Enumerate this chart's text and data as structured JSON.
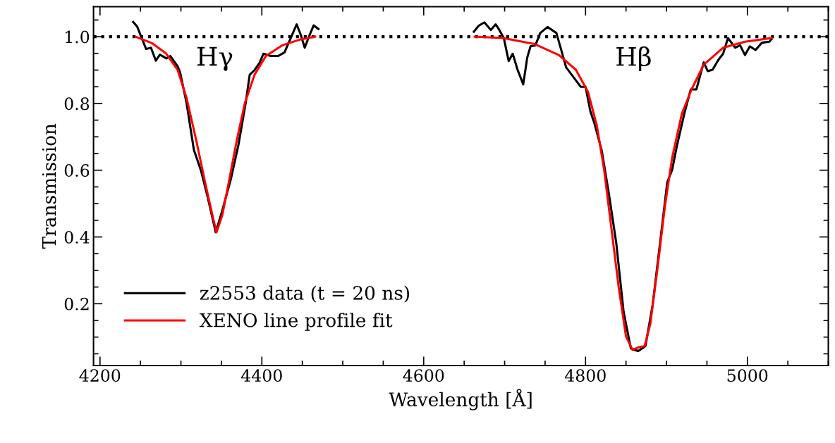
{
  "chart_data": {
    "type": "line",
    "xlabel": "Wavelength [Å]",
    "ylabel": "Transmission",
    "series": [
      {
        "name": "z2553 data (t = 20 ns)",
        "color": "#000000",
        "x": [
          4241,
          4246,
          4251,
          4257,
          4263,
          4269,
          4274,
          4282,
          4287,
          4296,
          4299,
          4307,
          4316,
          4325,
          4333,
          4343,
          4351,
          4362,
          4371,
          4380,
          4385,
          4391,
          4397,
          4402,
          4411,
          4420,
          4428,
          4435,
          4443,
          4448,
          4453,
          4458,
          4464,
          4470,
          4565,
          4662,
          4668,
          4675,
          4683,
          4689,
          4693,
          4699,
          4705,
          4710,
          4716,
          4723,
          4728,
          4732,
          4738,
          4744,
          4753,
          4764,
          4770,
          4776,
          4785,
          4794,
          4800,
          4806,
          4811,
          4820,
          4829,
          4838,
          4847,
          4856,
          4865,
          4874,
          4883,
          4892,
          4901,
          4907,
          4913,
          4922,
          4930,
          4937,
          4946,
          4951,
          4957,
          4964,
          4970,
          4976,
          4985,
          4991,
          4997,
          5003,
          5010,
          5018,
          5027,
          5030
        ],
        "values": [
          1.044,
          1.03,
          0.999,
          0.963,
          0.967,
          0.928,
          0.946,
          0.935,
          0.942,
          0.911,
          0.893,
          0.801,
          0.661,
          0.597,
          0.52,
          0.414,
          0.478,
          0.576,
          0.675,
          0.801,
          0.886,
          0.9,
          0.921,
          0.949,
          0.942,
          0.942,
          0.953,
          0.992,
          1.037,
          1.006,
          0.967,
          0.999,
          1.034,
          1.023,
          null,
          1.015,
          1.033,
          1.043,
          1.02,
          1.037,
          1.022,
          0.996,
          0.927,
          0.949,
          0.901,
          0.857,
          0.938,
          0.971,
          0.974,
          1.011,
          1.029,
          1.011,
          0.96,
          0.908,
          0.879,
          0.85,
          0.85,
          0.776,
          0.74,
          0.659,
          0.527,
          0.381,
          0.176,
          0.066,
          0.058,
          0.073,
          0.198,
          0.381,
          0.564,
          0.601,
          0.674,
          0.769,
          0.842,
          0.842,
          0.923,
          0.897,
          0.901,
          0.93,
          0.949,
          0.996,
          0.967,
          0.974,
          0.945,
          0.971,
          0.96,
          0.982,
          0.985,
          0.993
        ]
      },
      {
        "name": "XENO line profile fit",
        "color": "#ff0000",
        "x": [
          4244,
          4264,
          4282,
          4296,
          4307,
          4319,
          4330,
          4339,
          4344,
          4351,
          4359,
          4369,
          4379,
          4391,
          4405,
          4425,
          4448,
          4466,
          4565,
          4663,
          4698,
          4737,
          4767,
          4788,
          4803,
          4814,
          4823,
          4832,
          4841,
          4850,
          4858,
          4865,
          4873,
          4880,
          4889,
          4898,
          4907,
          4919,
          4931,
          4946,
          4970,
          4997,
          5030
        ],
        "values": [
          1.0,
          0.981,
          0.949,
          0.9,
          0.816,
          0.689,
          0.562,
          0.464,
          0.414,
          0.464,
          0.562,
          0.689,
          0.801,
          0.886,
          0.942,
          0.974,
          0.992,
          1.0,
          null,
          1.0,
          0.996,
          0.978,
          0.945,
          0.901,
          0.835,
          0.733,
          0.601,
          0.425,
          0.249,
          0.102,
          0.062,
          0.069,
          0.073,
          0.139,
          0.308,
          0.491,
          0.637,
          0.769,
          0.842,
          0.916,
          0.967,
          0.985,
          0.996
        ]
      }
    ],
    "annotations": [
      "Hγ",
      "Hβ"
    ],
    "ref_lines": [
      {
        "axis": "y",
        "value": 1.0,
        "color": "#000000",
        "line_style": "dotted"
      }
    ],
    "xlim": [
      4192,
      5100
    ],
    "ylim": [
      0.015,
      1.09
    ],
    "xticks": [
      4200,
      4400,
      4600,
      4800,
      5000
    ],
    "yticks": [
      0.2,
      0.4,
      0.6,
      0.8,
      {
        "value": 1.0,
        "label": "1.0"
      }
    ],
    "legend": "bottom left",
    "grid": false,
    "marker": "none",
    "line_style": "solid"
  }
}
